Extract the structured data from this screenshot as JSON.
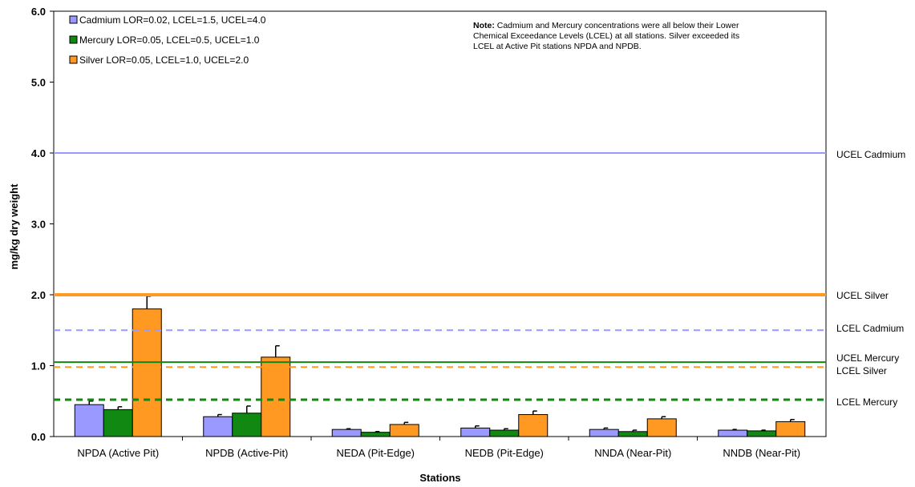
{
  "chart_data": {
    "type": "bar",
    "ylabel": "mg/kg dry weight",
    "xlabel": "Stations",
    "ylim": [
      0,
      6
    ],
    "yticks": [
      "0.0",
      "1.0",
      "2.0",
      "3.0",
      "4.0",
      "5.0",
      "6.0"
    ],
    "categories": [
      "NPDA (Active Pit)",
      "NPDB (Active-Pit)",
      "NEDA (Pit-Edge)",
      "NEDB (Pit-Edge)",
      "NNDA (Near-Pit)",
      "NNDB (Near-Pit)"
    ],
    "series": [
      {
        "name": "Cadmium LOR=0.02, LCEL=1.5, UCEL=4.0",
        "color": "#9999ff",
        "values": [
          0.45,
          0.28,
          0.1,
          0.12,
          0.1,
          0.09
        ],
        "errors": [
          0.05,
          0.03,
          0.01,
          0.03,
          0.02,
          0.01
        ]
      },
      {
        "name": "Mercury LOR=0.05, LCEL=0.5, UCEL=1.0",
        "color": "#118811",
        "values": [
          0.38,
          0.33,
          0.06,
          0.09,
          0.07,
          0.08
        ],
        "errors": [
          0.04,
          0.1,
          0.01,
          0.02,
          0.02,
          0.01
        ]
      },
      {
        "name": "Silver LOR=0.05, LCEL=1.0, UCEL=2.0",
        "color": "#ff9922",
        "values": [
          1.8,
          1.12,
          0.17,
          0.31,
          0.25,
          0.21
        ],
        "errors": [
          0.18,
          0.16,
          0.03,
          0.05,
          0.03,
          0.03
        ]
      }
    ],
    "reference_lines": [
      {
        "label": "UCEL Cadmium",
        "value": 4.0,
        "color": "#9999ff",
        "style": "solid",
        "width": 2
      },
      {
        "label": "UCEL Silver",
        "value": 2.0,
        "color": "#ff9922",
        "style": "solid",
        "width": 4
      },
      {
        "label": "LCEL Cadmium",
        "value": 1.5,
        "color": "#9999ff",
        "style": "dashed",
        "width": 2
      },
      {
        "label": "UCEL Mercury",
        "value": 1.05,
        "color": "#118811",
        "style": "solid",
        "width": 2
      },
      {
        "label": "LCEL Silver",
        "value": 0.98,
        "color": "#ff9922",
        "style": "dashed",
        "width": 2
      },
      {
        "label": "LCEL Mercury",
        "value": 0.52,
        "color": "#118811",
        "style": "dashed",
        "width": 3
      }
    ],
    "note": {
      "bold": "Note:",
      "lines": [
        " Cadmium and Mercury concentrations were all below their Lower",
        "Chemical Exceedance Levels (LCEL) at all stations.  Silver exceeded its",
        "LCEL at Active Pit stations NPDA and NPDB."
      ]
    },
    "legend_position": "top-left",
    "grid": false
  }
}
